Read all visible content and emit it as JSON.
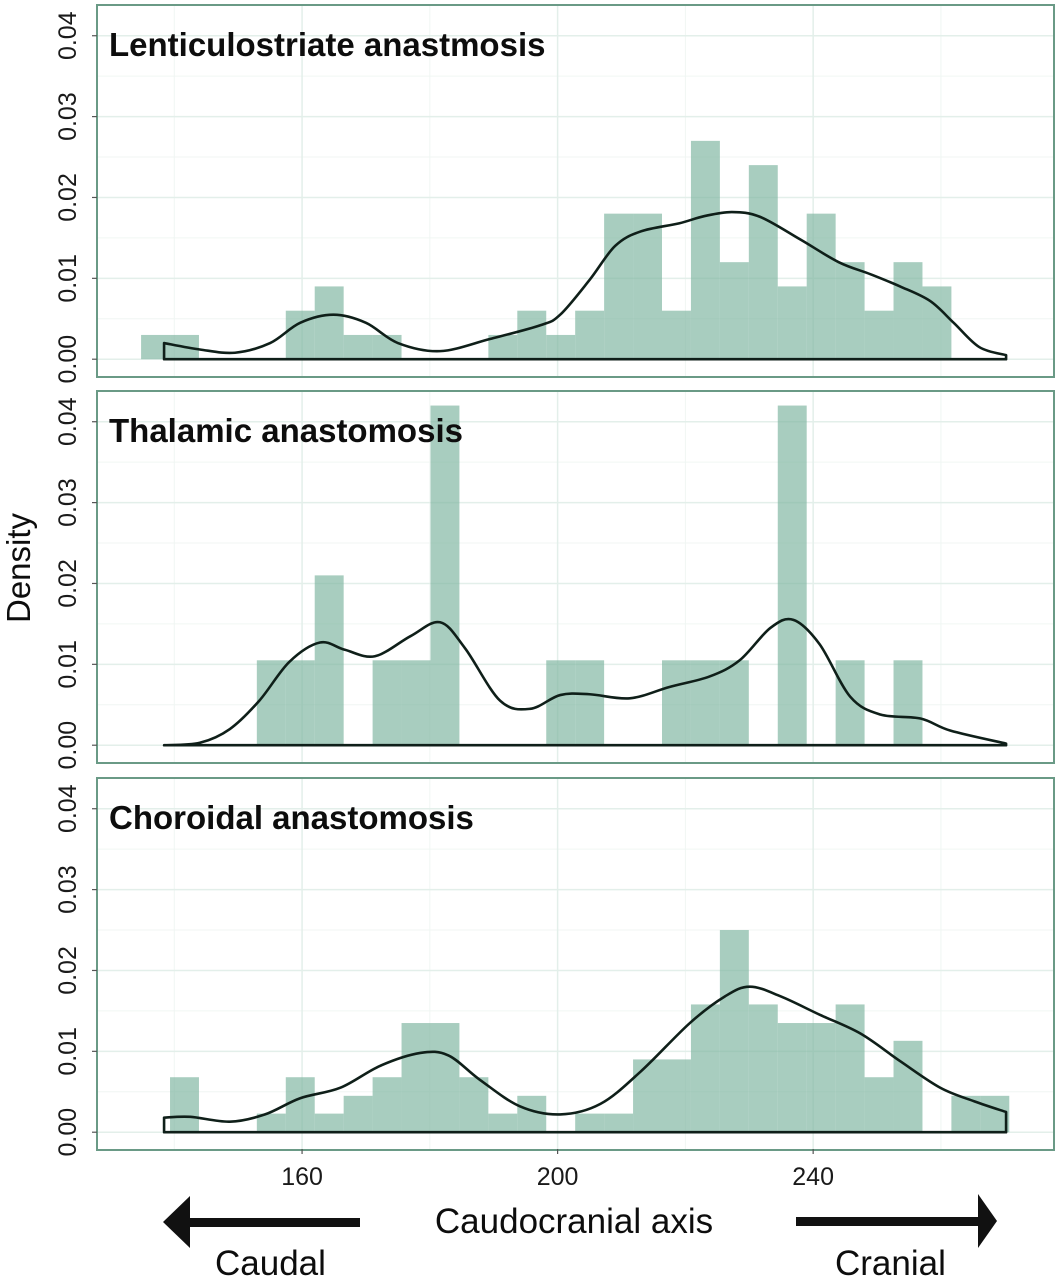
{
  "chart_data": {
    "type": "bar",
    "subtype": "histogram-with-density",
    "ylabel": "Density",
    "xlabel": "Caudocranial axis",
    "x_ticks": [
      160,
      200,
      240
    ],
    "y_ticks": [
      "0.00",
      "0.01",
      "0.02",
      "0.03",
      "0.04"
    ],
    "xlim": [
      127.9,
      277.7
    ],
    "ylim": [
      -0.0022,
      0.0438
    ],
    "grid": true,
    "direction_labels": {
      "left": "Caudal",
      "right": "Cranial"
    },
    "colors": {
      "bar": "#7fb5a0",
      "curve": "#0f1f19",
      "frame": "#6a9a86",
      "grid": "#e3efea"
    },
    "bin_start": 134.8,
    "bin_width": 4.53,
    "panels": [
      {
        "title": "Lenticulostriate anastmosis",
        "bins": [
          0.003,
          0.003,
          0,
          0,
          0,
          0.006,
          0.009,
          0.003,
          0.003,
          0,
          0,
          0,
          0.003,
          0.006,
          0.003,
          0.006,
          0.018,
          0.018,
          0.006,
          0.027,
          0.012,
          0.024,
          0.009,
          0.018,
          0.012,
          0.006,
          0.012,
          0.009,
          0,
          0
        ],
        "density": [
          [
            138.4,
            0.002
          ],
          [
            144,
            0.0012
          ],
          [
            149.5,
            0.0008
          ],
          [
            155,
            0.002
          ],
          [
            159.7,
            0.0045
          ],
          [
            164.9,
            0.0055
          ],
          [
            170,
            0.0045
          ],
          [
            175,
            0.002
          ],
          [
            181.6,
            0.001
          ],
          [
            189.4,
            0.0025
          ],
          [
            197.3,
            0.0042
          ],
          [
            200.4,
            0.0055
          ],
          [
            205,
            0.0098
          ],
          [
            209,
            0.014
          ],
          [
            213,
            0.0158
          ],
          [
            219,
            0.0168
          ],
          [
            223,
            0.0177
          ],
          [
            227.3,
            0.0182
          ],
          [
            231.7,
            0.0176
          ],
          [
            238,
            0.0148
          ],
          [
            244,
            0.012
          ],
          [
            249,
            0.0105
          ],
          [
            253.6,
            0.009
          ],
          [
            258.3,
            0.0072
          ],
          [
            262,
            0.0045
          ],
          [
            266,
            0.0015
          ],
          [
            270.2,
            0.0005
          ]
        ]
      },
      {
        "title": "Thalamic anastomosis",
        "bins": [
          0,
          0,
          0,
          0,
          0.0105,
          0.0105,
          0.021,
          0,
          0.0105,
          0.0105,
          0.042,
          0,
          0,
          0,
          0.0105,
          0.0105,
          0,
          0,
          0.0105,
          0.0105,
          0.0105,
          0,
          0.042,
          0,
          0.0105,
          0,
          0.0105,
          0,
          0,
          0
        ],
        "density": [
          [
            138.4,
            0
          ],
          [
            144,
            0.0003
          ],
          [
            148.7,
            0.002
          ],
          [
            153.3,
            0.0055
          ],
          [
            158,
            0.0103
          ],
          [
            162.8,
            0.0127
          ],
          [
            166.7,
            0.0118
          ],
          [
            171.4,
            0.011
          ],
          [
            177,
            0.0135
          ],
          [
            181.6,
            0.0152
          ],
          [
            185.5,
            0.012
          ],
          [
            191,
            0.0055
          ],
          [
            195.7,
            0.0045
          ],
          [
            200.4,
            0.0062
          ],
          [
            205,
            0.0063
          ],
          [
            211.3,
            0.0058
          ],
          [
            217.5,
            0.0072
          ],
          [
            223.8,
            0.0085
          ],
          [
            228.5,
            0.0105
          ],
          [
            233.3,
            0.0145
          ],
          [
            236.9,
            0.0155
          ],
          [
            241,
            0.0125
          ],
          [
            245.8,
            0.006
          ],
          [
            250.5,
            0.0038
          ],
          [
            256.8,
            0.0033
          ],
          [
            261.5,
            0.0018
          ],
          [
            270.2,
            0.0002
          ]
        ]
      },
      {
        "title": "Choroidal anastomosis",
        "bins": [
          0,
          0.0068,
          0,
          0,
          0.0023,
          0.0068,
          0.0023,
          0.0045,
          0.0068,
          0.0135,
          0.0135,
          0.0068,
          0.0023,
          0.0045,
          0,
          0.0023,
          0.0023,
          0.009,
          0.009,
          0.0158,
          0.025,
          0.0158,
          0.0135,
          0.0135,
          0.0158,
          0.0068,
          0.0113,
          0,
          0.0045,
          0.0045
        ],
        "density": [
          [
            138.4,
            0.0018
          ],
          [
            142.5,
            0.0019
          ],
          [
            148.7,
            0.0013
          ],
          [
            154.2,
            0.0022
          ],
          [
            159.7,
            0.0042
          ],
          [
            166,
            0.0055
          ],
          [
            172.2,
            0.0082
          ],
          [
            178.5,
            0.0098
          ],
          [
            182.9,
            0.0095
          ],
          [
            187.8,
            0.0065
          ],
          [
            194.1,
            0.0032
          ],
          [
            200.4,
            0.0022
          ],
          [
            206.7,
            0.0035
          ],
          [
            213,
            0.0075
          ],
          [
            220.7,
            0.0135
          ],
          [
            226.2,
            0.0168
          ],
          [
            230.1,
            0.018
          ],
          [
            234.9,
            0.0168
          ],
          [
            241.1,
            0.0145
          ],
          [
            247.4,
            0.0122
          ],
          [
            253.6,
            0.0088
          ],
          [
            259.9,
            0.0055
          ],
          [
            265.3,
            0.0038
          ],
          [
            270.2,
            0.0025
          ]
        ]
      }
    ]
  }
}
